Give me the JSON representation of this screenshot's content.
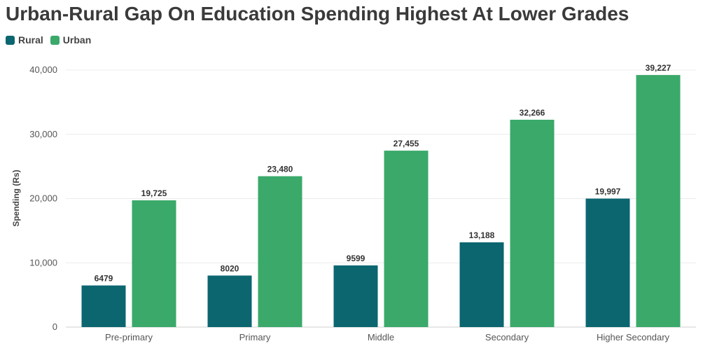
{
  "chart_data": {
    "type": "bar",
    "title": "Urban-Rural Gap On Education Spending Highest At Lower Grades",
    "xlabel": "",
    "ylabel": "Spending (Rs)",
    "ylim": [
      0,
      40000
    ],
    "yticks": [
      0,
      10000,
      20000,
      30000,
      40000
    ],
    "ytick_labels": [
      "0",
      "10,000",
      "20,000",
      "30,000",
      "40,000"
    ],
    "grid": true,
    "legend_position": "top-left",
    "categories": [
      "Pre-primary",
      "Primary",
      "Middle",
      "Secondary",
      "Higher Secondary"
    ],
    "series": [
      {
        "name": "Rural",
        "color": "#0b6670",
        "values": [
          6479,
          8020,
          9599,
          13188,
          19997
        ],
        "labels": [
          "6479",
          "8020",
          "9599",
          "13,188",
          "19,997"
        ]
      },
      {
        "name": "Urban",
        "color": "#3aa96a",
        "values": [
          19725,
          23480,
          27455,
          32266,
          39227
        ],
        "labels": [
          "19,725",
          "23,480",
          "27,455",
          "32,266",
          "39,227"
        ]
      }
    ]
  }
}
